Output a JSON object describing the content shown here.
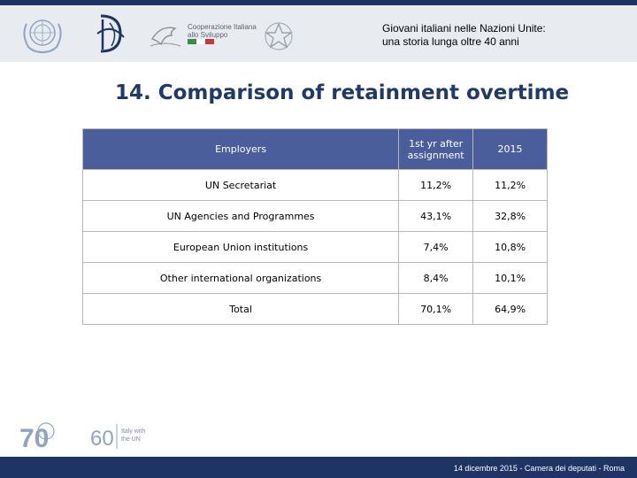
{
  "header": {
    "title_line1": "Giovani italiani nelle Nazioni Unite:",
    "title_line2": "una storia lunga oltre 40 anni",
    "coop_line1": "Cooperazione Italiana",
    "coop_line2": "allo Sviluppo"
  },
  "slide": {
    "title": "14. Comparison of retainment overtime"
  },
  "table": {
    "headers": {
      "employers": "Employers",
      "first_year": "1st yr after assignment",
      "year_2015": "2015"
    },
    "rows": [
      {
        "employer": "UN Secretariat",
        "first_year": "11,2%",
        "year_2015": "11,2%"
      },
      {
        "employer": "UN Agencies and Programmes",
        "first_year": "43,1%",
        "year_2015": "32,8%"
      },
      {
        "employer": "European Union institutions",
        "first_year": "7,4%",
        "year_2015": "10,8%"
      },
      {
        "employer": "Other international organizations",
        "first_year": "8,4%",
        "year_2015": "10,1%"
      },
      {
        "employer": "Total",
        "first_year": "70,1%",
        "year_2015": "64,9%"
      }
    ]
  },
  "footer": {
    "text": "14 dicembre 2015 - Camera dei deputati - Roma",
    "logo70_number": "70",
    "logo60_number": "60",
    "logo60_caption_1": "Italy with",
    "logo60_caption_2": "the UN"
  },
  "colors": {
    "primary_navy": "#1e3464",
    "table_header": "#4b5e9c",
    "title_blue": "#1f3a68",
    "header_band": "#e8ebef"
  },
  "icons": [
    "un-emblem-icon",
    "italian-republic-emblem-icon",
    "dove-icon",
    "italy-flag-icon"
  ]
}
